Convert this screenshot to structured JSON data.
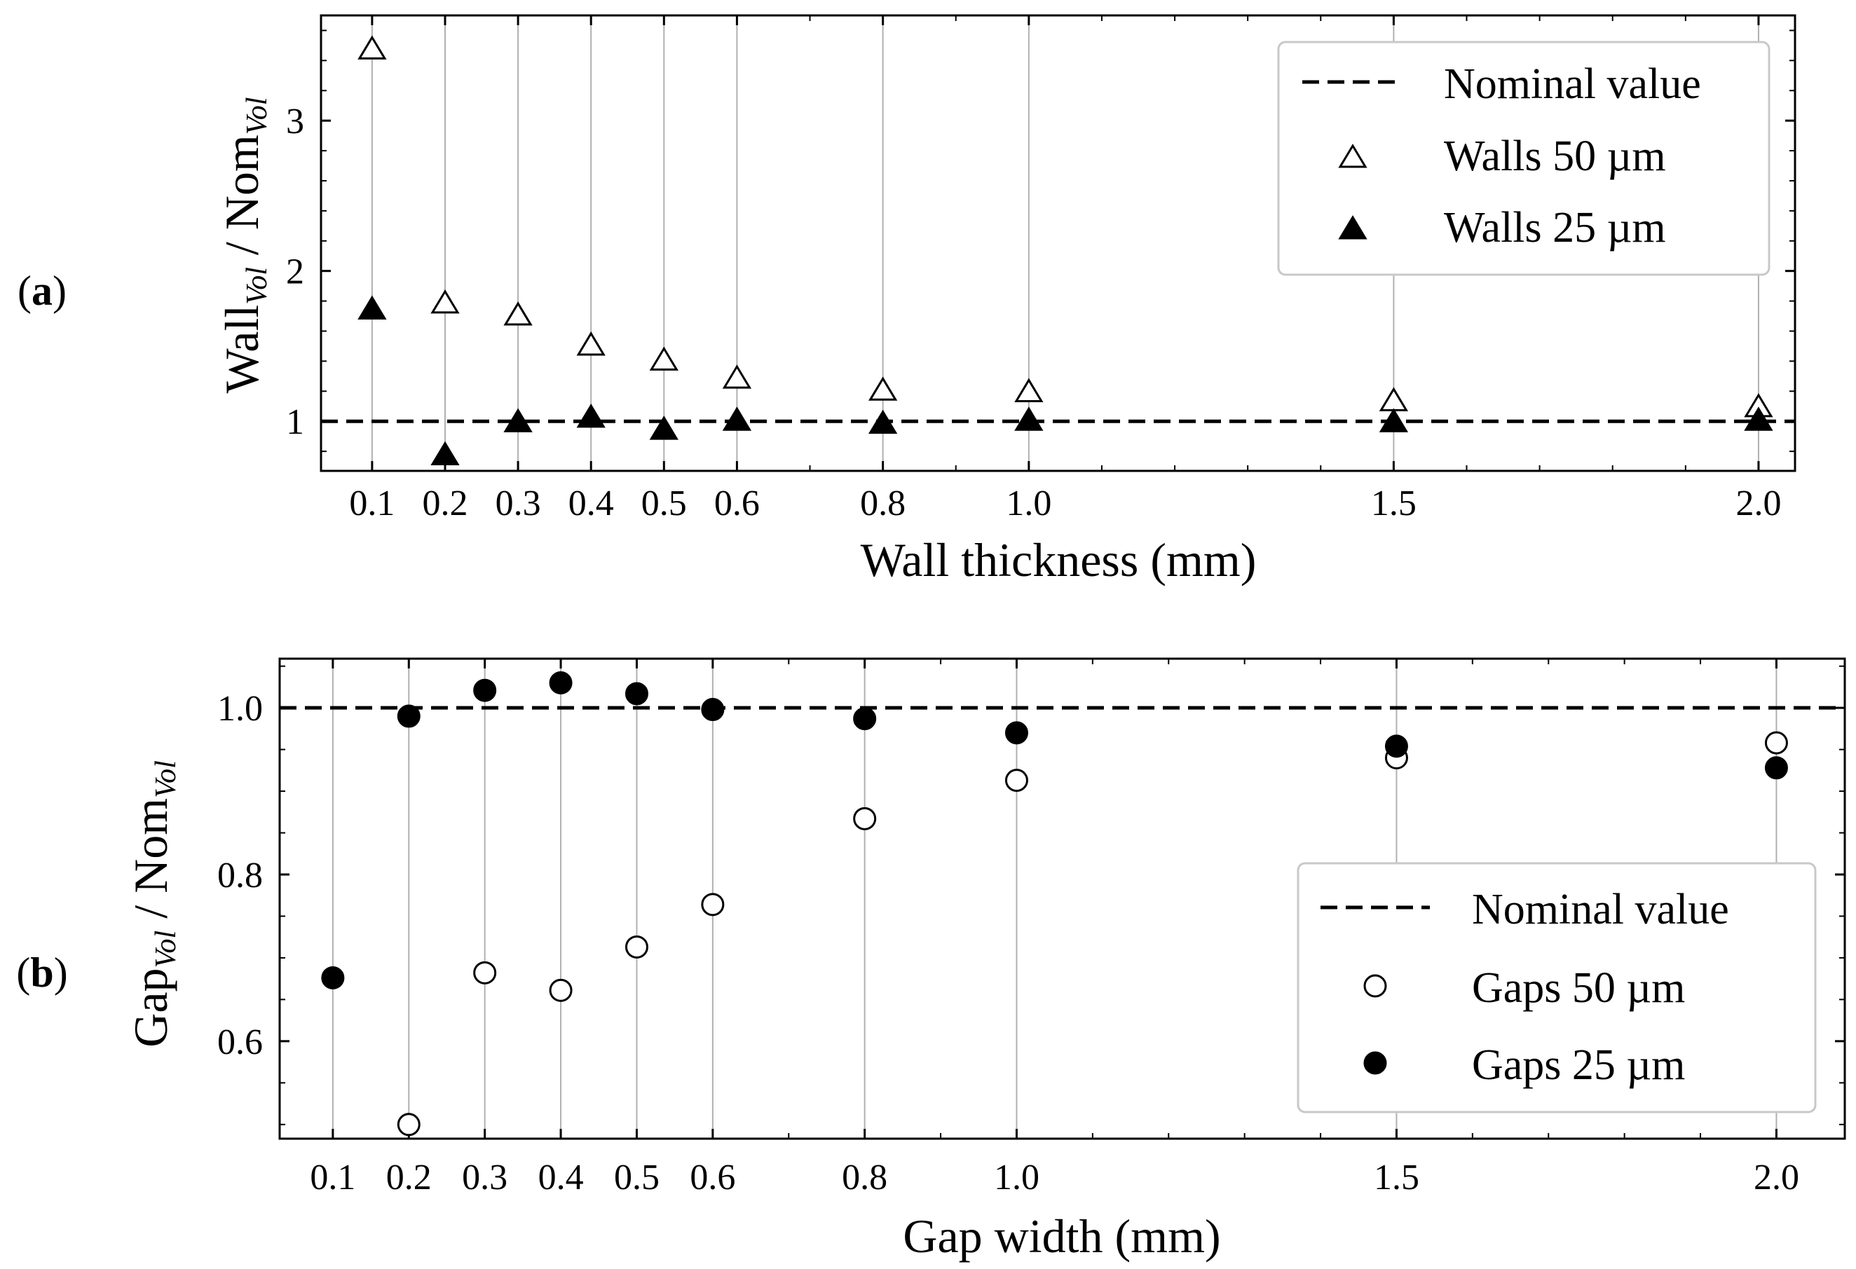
{
  "chart_data": [
    {
      "type": "scatter",
      "panel_label_open": "(",
      "panel_label_letter": "a",
      "panel_label_close": ")",
      "xlabel": "Wall thickness (mm)",
      "ylabel_main": "Wall",
      "ylabel_sub": "Vol",
      "ylabel_sep": " / Nom",
      "ylabel_sub2": "Vol",
      "x": [
        0.1,
        0.2,
        0.3,
        0.4,
        0.5,
        0.6,
        0.8,
        1.0,
        1.5,
        2.0
      ],
      "xtick_labels": [
        "0.1",
        "0.2",
        "0.3",
        "0.4",
        "0.5",
        "0.6",
        "0.8",
        "1.0",
        "1.5",
        "2.0"
      ],
      "yticks": [
        1,
        2,
        3
      ],
      "ytick_labels": [
        "1",
        "2",
        "3"
      ],
      "ylim": [
        0.67,
        3.7
      ],
      "xlim": [
        0.03,
        2.05
      ],
      "grid": "vertical",
      "nominal_value": 1.0,
      "legend_position": "top-right",
      "series": [
        {
          "name": "Nominal value",
          "marker": "dashed-line"
        },
        {
          "name": "Walls 50 µm",
          "marker": "open-triangle",
          "values": [
            3.47,
            1.78,
            1.7,
            1.5,
            1.4,
            1.28,
            1.2,
            1.19,
            1.13,
            1.09
          ]
        },
        {
          "name": "Walls 25 µm",
          "marker": "filled-triangle",
          "values": [
            1.74,
            0.77,
            0.99,
            1.02,
            0.94,
            1.0,
            0.98,
            1.0,
            0.99,
            1.0
          ]
        }
      ]
    },
    {
      "type": "scatter",
      "panel_label_open": "(",
      "panel_label_letter": "b",
      "panel_label_close": ")",
      "xlabel": "Gap width (mm)",
      "ylabel_main": "Gap",
      "ylabel_sub": "Vol",
      "ylabel_sep": " / Nom",
      "ylabel_sub2": "Vol",
      "x": [
        0.1,
        0.2,
        0.3,
        0.4,
        0.5,
        0.6,
        0.8,
        1.0,
        1.5,
        2.0
      ],
      "xtick_labels": [
        "0.1",
        "0.2",
        "0.3",
        "0.4",
        "0.5",
        "0.6",
        "0.8",
        "1.0",
        "1.5",
        "2.0"
      ],
      "yticks": [
        0.6,
        0.8,
        1.0
      ],
      "ytick_labels": [
        "0.6",
        "0.8",
        "1.0"
      ],
      "ylim": [
        0.483,
        1.059
      ],
      "xlim": [
        0.03,
        2.09
      ],
      "grid": "vertical",
      "nominal_value": 1.0,
      "legend_position": "lower-right",
      "series": [
        {
          "name": "Nominal value",
          "marker": "dashed-line"
        },
        {
          "name": "Gaps 50 µm",
          "marker": "open-circle",
          "values": [
            null,
            0.5,
            0.682,
            0.661,
            0.713,
            0.764,
            0.867,
            0.913,
            0.94,
            0.958
          ]
        },
        {
          "name": "Gaps 25 µm",
          "marker": "filled-circle",
          "values": [
            0.676,
            0.99,
            1.021,
            1.03,
            1.017,
            0.998,
            0.987,
            0.97,
            0.954,
            0.928
          ]
        }
      ]
    }
  ]
}
